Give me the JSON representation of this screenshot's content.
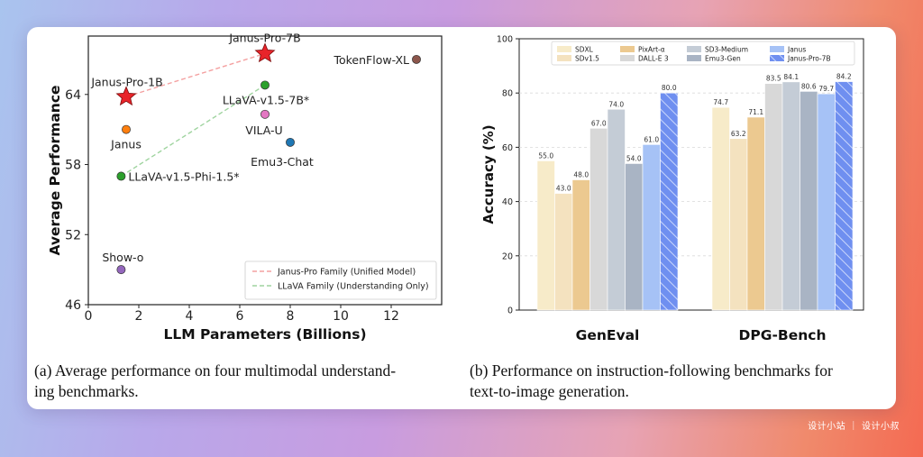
{
  "chart_data": [
    {
      "type": "scatter",
      "xlabel": "LLM Parameters (Billions)",
      "ylabel": "Average Performance",
      "xlim": [
        0,
        14
      ],
      "ylim": [
        46,
        69
      ],
      "xticks": [
        0,
        2,
        4,
        6,
        8,
        10,
        12
      ],
      "yticks": [
        46,
        52,
        58,
        64
      ],
      "points": [
        {
          "label": "Janus-Pro-7B",
          "x": 7.0,
          "y": 67.5,
          "color": "#e8242a",
          "marker": "star"
        },
        {
          "label": "Janus-Pro-1B",
          "x": 1.5,
          "y": 63.8,
          "color": "#e8242a",
          "marker": "star"
        },
        {
          "label": "TokenFlow-XL",
          "x": 13.0,
          "y": 67.0,
          "color": "#8c564b",
          "marker": "circle"
        },
        {
          "label": "LLaVA-v1.5-7B*",
          "x": 7.0,
          "y": 64.8,
          "color": "#2ca02c",
          "marker": "circle"
        },
        {
          "label": "VILA-U",
          "x": 7.0,
          "y": 62.3,
          "color": "#e377c2",
          "marker": "circle"
        },
        {
          "label": "Janus",
          "x": 1.5,
          "y": 61.0,
          "color": "#ff7f0e",
          "marker": "circle"
        },
        {
          "label": "Emu3-Chat",
          "x": 8.0,
          "y": 59.9,
          "color": "#1f77b4",
          "marker": "circle"
        },
        {
          "label": "LLaVA-v1.5-Phi-1.5*",
          "x": 1.3,
          "y": 57.0,
          "color": "#2ca02c",
          "marker": "circle"
        },
        {
          "label": "Show-o",
          "x": 1.3,
          "y": 49.0,
          "color": "#9467bd",
          "marker": "circle"
        }
      ],
      "lines": [
        {
          "name": "Janus-Pro Family (Unified Model)",
          "from": [
            1.5,
            63.8
          ],
          "to": [
            7.0,
            67.5
          ],
          "color": "#f4a0a0"
        },
        {
          "name": "LLaVA Family (Understanding Only)",
          "from": [
            1.3,
            57.0
          ],
          "to": [
            7.0,
            64.8
          ],
          "color": "#9fd49f"
        }
      ],
      "legend": "bottom-right"
    },
    {
      "type": "bar",
      "ylabel": "Accuracy (%)",
      "ylim": [
        0,
        100
      ],
      "yticks": [
        0,
        20,
        40,
        60,
        80,
        100
      ],
      "categories": [
        "GenEval",
        "DPG-Bench"
      ],
      "legend": "top",
      "series": [
        {
          "name": "SDXL",
          "values": [
            55.0,
            74.7
          ],
          "color": "#f7ebc9"
        },
        {
          "name": "SDv1.5",
          "values": [
            43.0,
            63.2
          ],
          "color": "#f4e2bf"
        },
        {
          "name": "PixArt-α",
          "values": [
            48.0,
            71.1
          ],
          "color": "#ecc990"
        },
        {
          "name": "DALL-E 3",
          "values": [
            67.0,
            83.5
          ],
          "color": "#d8d8d8"
        },
        {
          "name": "SD3-Medium",
          "values": [
            74.0,
            84.1
          ],
          "color": "#c4ccd6"
        },
        {
          "name": "Emu3-Gen",
          "values": [
            54.0,
            80.6
          ],
          "color": "#a9b4c4"
        },
        {
          "name": "Janus",
          "values": [
            61.0,
            79.7
          ],
          "color": "#a6c2f6"
        },
        {
          "name": "Janus-Pro-7B",
          "values": [
            80.0,
            84.2
          ],
          "color": "#6f8ff0",
          "hatch": true
        }
      ]
    }
  ],
  "captions": {
    "left_tag": "(a)",
    "left_line1": "Average performance on four multimodal understand-",
    "left_line2": "ing benchmarks.",
    "right_tag": "(b)",
    "right_line1": "Performance on instruction-following benchmarks for",
    "right_line2": "text-to-image generation."
  },
  "watermark": "设计小站 ｜ 设计小叔"
}
